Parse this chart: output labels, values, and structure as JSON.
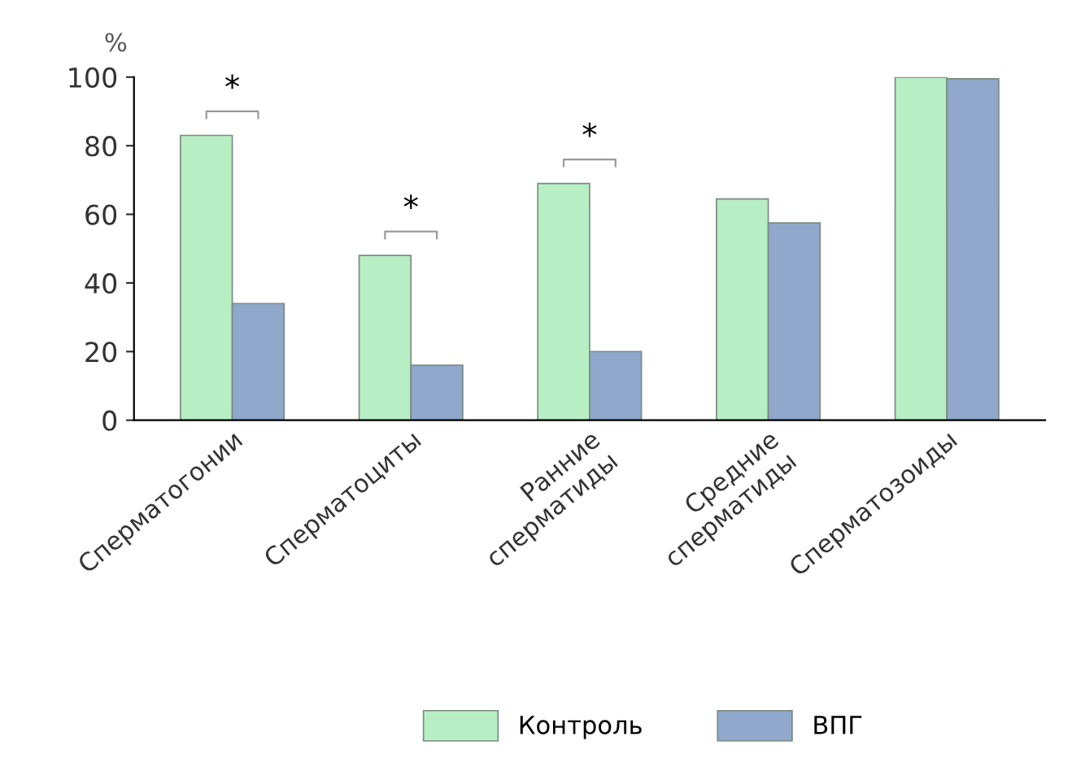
{
  "chart_data": {
    "type": "bar",
    "ylabel": "%",
    "categories": [
      "Сперматогонии",
      "Сперматоциты",
      "Ранние\nсперматиды",
      "Средние\nсперматиды",
      "Сперматозоиды"
    ],
    "series": [
      {
        "name": "Контроль",
        "color": "#b8eec4",
        "values": [
          83,
          48,
          69,
          64.5,
          100
        ]
      },
      {
        "name": "ВПГ",
        "color": "#8fa8cc",
        "values": [
          34,
          16,
          20,
          57.5,
          99.5
        ]
      }
    ],
    "ylim": [
      0,
      100
    ],
    "yticks": [
      0,
      20,
      40,
      60,
      80,
      100
    ],
    "grid": false,
    "legend": "bottom",
    "annotations": [
      "*",
      "*",
      "*"
    ]
  }
}
